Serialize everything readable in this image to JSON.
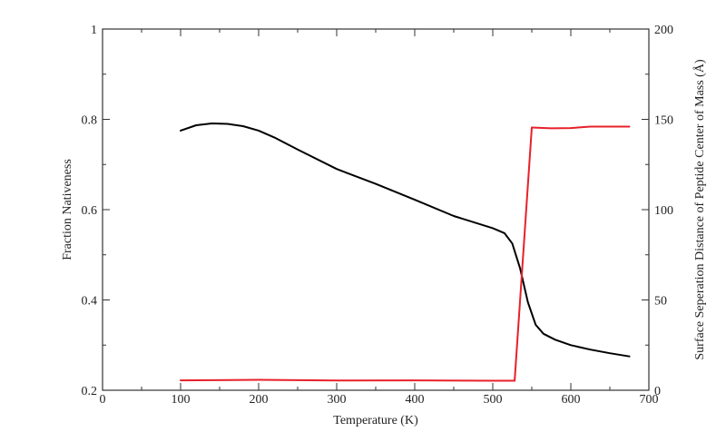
{
  "chart_data": {
    "type": "line",
    "xlabel": "Temperature (K)",
    "ylabel_left": "Fraction Nativeness",
    "ylabel_right": "Surface Seperation Distance of Peptide Center of Mass (Å)",
    "xlim": [
      0,
      700
    ],
    "ylim_left": [
      0.2,
      1.0
    ],
    "ylim_right": [
      0,
      200
    ],
    "xticks": [
      0,
      100,
      200,
      300,
      400,
      500,
      600,
      700
    ],
    "xtick_labels": [
      "0",
      "100",
      "200",
      "300",
      "400",
      "500",
      "600",
      "700"
    ],
    "yticks_left": [
      0.2,
      0.4,
      0.6,
      0.8,
      1.0
    ],
    "ytick_labels_left": [
      "0.2",
      "0.4",
      "0.6",
      "0.8",
      "1"
    ],
    "yticks_right": [
      0,
      50,
      100,
      150,
      200
    ],
    "ytick_labels_right": [
      "0",
      "50",
      "100",
      "150",
      "200"
    ],
    "grid": false,
    "series": [
      {
        "axis": "left",
        "color": "#000000",
        "x": [
          100,
          120,
          140,
          160,
          180,
          200,
          220,
          250,
          300,
          350,
          400,
          450,
          500,
          515,
          525,
          535,
          545,
          555,
          565,
          580,
          600,
          625,
          650,
          675
        ],
        "y": [
          0.775,
          0.787,
          0.791,
          0.79,
          0.785,
          0.775,
          0.76,
          0.733,
          0.69,
          0.657,
          0.622,
          0.586,
          0.559,
          0.548,
          0.525,
          0.47,
          0.395,
          0.345,
          0.325,
          0.312,
          0.3,
          0.29,
          0.282,
          0.275
        ]
      },
      {
        "axis": "right",
        "color": "#e8202a",
        "x": [
          100,
          200,
          300,
          400,
          500,
          528,
          550,
          575,
          600,
          625,
          650,
          675
        ],
        "y": [
          5.5,
          5.8,
          5.4,
          5.5,
          5.3,
          5.3,
          145.5,
          145,
          145.2,
          146,
          146,
          146
        ]
      }
    ]
  }
}
